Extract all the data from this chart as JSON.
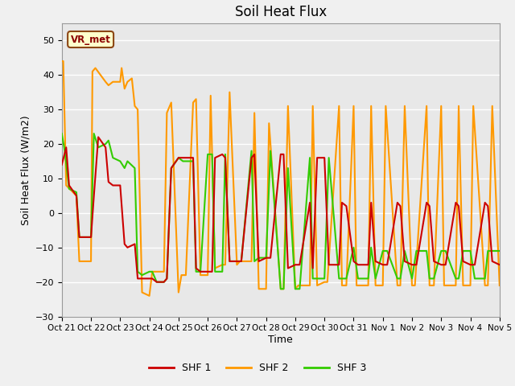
{
  "title": "Soil Heat Flux",
  "xlabel": "Time",
  "ylabel": "Soil Heat Flux (W/m2)",
  "ylim": [
    -30,
    55
  ],
  "yticks": [
    -30,
    -20,
    -10,
    0,
    10,
    20,
    30,
    40,
    50
  ],
  "color_shf1": "#cc0000",
  "color_shf2": "#ff9900",
  "color_shf3": "#33cc00",
  "label_shf1": "SHF 1",
  "label_shf2": "SHF 2",
  "label_shf3": "SHF 3",
  "annotation_text": "VR_met",
  "bg_color": "#e8e8e8",
  "fig_color": "#f0f0f0",
  "tick_labels": [
    "Oct 21",
    "Oct 22",
    "Oct 23",
    "Oct 24",
    "Oct 25",
    "Oct 26",
    "Oct 27",
    "Oct 28",
    "Oct 29",
    "Oct 30",
    "Oct 31",
    "Nov 1",
    "Nov 2",
    "Nov 3",
    "Nov 4",
    "Nov 5"
  ],
  "shf1_x": [
    0.0,
    0.15,
    0.25,
    0.5,
    0.6,
    0.75,
    1.0,
    1.1,
    1.25,
    1.5,
    1.6,
    1.75,
    2.0,
    2.15,
    2.25,
    2.5,
    2.6,
    2.75,
    3.0,
    3.1,
    3.25,
    3.5,
    3.6,
    3.75,
    4.0,
    4.15,
    4.5,
    4.6,
    4.75,
    5.0,
    5.15,
    5.25,
    5.5,
    5.6,
    5.75,
    6.0,
    6.15,
    6.5,
    6.6,
    6.75,
    7.0,
    7.15,
    7.5,
    7.6,
    7.75,
    8.0,
    8.15,
    8.5,
    8.6,
    8.75,
    9.0,
    9.15,
    9.5,
    9.6,
    9.75,
    10.0,
    10.15,
    10.5,
    10.6,
    10.75,
    11.0,
    11.15,
    11.5,
    11.6,
    11.75,
    12.0,
    12.15,
    12.5,
    12.6,
    12.75,
    13.0,
    13.15,
    13.5,
    13.6,
    13.75,
    14.0,
    14.15,
    14.5,
    14.6,
    14.75,
    15.0
  ],
  "shf1_y": [
    14,
    19,
    8,
    5,
    -7,
    -7,
    -7,
    5,
    22,
    19,
    9,
    8,
    8,
    -9,
    -10,
    -9,
    -19,
    -19,
    -19,
    -19,
    -20,
    -20,
    -19,
    13,
    16,
    16,
    16,
    -16,
    -17,
    -17,
    -17,
    16,
    17,
    16,
    -14,
    -14,
    -14,
    16,
    17,
    -14,
    -13,
    -13,
    17,
    17,
    -16,
    -15,
    -15,
    3,
    -16,
    16,
    16,
    -15,
    -15,
    3,
    2,
    -14,
    -15,
    -15,
    3,
    -14,
    -15,
    -15,
    3,
    2,
    -14,
    -15,
    -15,
    3,
    2,
    -14,
    -15,
    -15,
    3,
    2,
    -14,
    -15,
    -15,
    3,
    2,
    -14,
    -15
  ],
  "shf2_x": [
    0.0,
    0.05,
    0.15,
    0.5,
    0.6,
    0.75,
    1.0,
    1.05,
    1.15,
    1.5,
    1.6,
    1.75,
    2.0,
    2.05,
    2.15,
    2.25,
    2.4,
    2.5,
    2.6,
    2.75,
    3.0,
    3.1,
    3.25,
    3.5,
    3.6,
    3.75,
    4.0,
    4.1,
    4.25,
    4.5,
    4.6,
    4.75,
    5.0,
    5.1,
    5.25,
    5.5,
    5.6,
    5.75,
    6.0,
    6.1,
    6.5,
    6.6,
    6.75,
    7.0,
    7.1,
    7.5,
    7.6,
    7.75,
    8.0,
    8.1,
    8.5,
    8.6,
    8.75,
    9.0,
    9.1,
    9.5,
    9.6,
    9.75,
    10.0,
    10.1,
    10.5,
    10.6,
    10.75,
    11.0,
    11.1,
    11.5,
    11.6,
    11.75,
    12.0,
    12.1,
    12.5,
    12.6,
    12.75,
    13.0,
    13.1,
    13.5,
    13.6,
    13.75,
    14.0,
    14.1,
    14.5,
    14.6,
    14.75,
    15.0
  ],
  "shf2_y": [
    44,
    44,
    8,
    5,
    -14,
    -14,
    -14,
    41,
    42,
    38,
    37,
    38,
    38,
    42,
    36,
    38,
    39,
    31,
    30,
    -23,
    -24,
    -17,
    -17,
    -17,
    29,
    32,
    -23,
    -18,
    -18,
    32,
    33,
    -18,
    -18,
    34,
    -16,
    -15,
    -15,
    35,
    -15,
    -14,
    -14,
    29,
    -22,
    -22,
    26,
    -22,
    -22,
    31,
    -22,
    -21,
    -21,
    31,
    -21,
    -20,
    -20,
    31,
    -21,
    -21,
    31,
    -21,
    -21,
    31,
    -21,
    -21,
    31,
    -21,
    -21,
    31,
    -21,
    -21,
    31,
    -21,
    -21,
    31,
    -21,
    -21,
    31,
    -21,
    -21,
    31,
    -21,
    -21,
    31,
    -21
  ],
  "shf3_x": [
    0.0,
    0.1,
    0.25,
    0.5,
    0.6,
    0.75,
    1.0,
    1.1,
    1.25,
    1.5,
    1.6,
    1.75,
    2.0,
    2.15,
    2.25,
    2.5,
    2.6,
    2.75,
    3.0,
    3.1,
    3.25,
    3.5,
    3.6,
    3.75,
    4.0,
    4.15,
    4.5,
    4.6,
    4.75,
    5.0,
    5.15,
    5.25,
    5.5,
    5.6,
    5.75,
    6.0,
    6.15,
    6.5,
    6.6,
    6.75,
    7.0,
    7.15,
    7.5,
    7.6,
    7.75,
    8.0,
    8.15,
    8.5,
    8.6,
    8.75,
    9.0,
    9.15,
    9.5,
    9.6,
    9.75,
    10.0,
    10.15,
    10.5,
    10.6,
    10.75,
    11.0,
    11.15,
    11.5,
    11.6,
    11.75,
    12.0,
    12.15,
    12.5,
    12.6,
    12.75,
    13.0,
    13.15,
    13.5,
    13.6,
    13.75,
    14.0,
    14.15,
    14.5,
    14.6,
    14.75,
    15.0
  ],
  "shf3_y": [
    23,
    18,
    7,
    6,
    -7,
    -7,
    -7,
    23,
    19,
    20,
    21,
    16,
    15,
    13,
    15,
    13,
    -17,
    -18,
    -17,
    -17,
    -20,
    -20,
    -19,
    13,
    16,
    15,
    15,
    -17,
    -17,
    17,
    17,
    -17,
    -17,
    17,
    -14,
    -14,
    -14,
    18,
    -14,
    -13,
    -13,
    18,
    -22,
    -22,
    13,
    -22,
    -22,
    16,
    -19,
    -19,
    -19,
    16,
    -19,
    -19,
    -19,
    -10,
    -19,
    -19,
    -10,
    -19,
    -11,
    -11,
    -19,
    -19,
    -11,
    -19,
    -11,
    -11,
    -19,
    -19,
    -11,
    -11,
    -19,
    -19,
    -11,
    -11,
    -19,
    -19,
    -11,
    -11,
    -11
  ]
}
